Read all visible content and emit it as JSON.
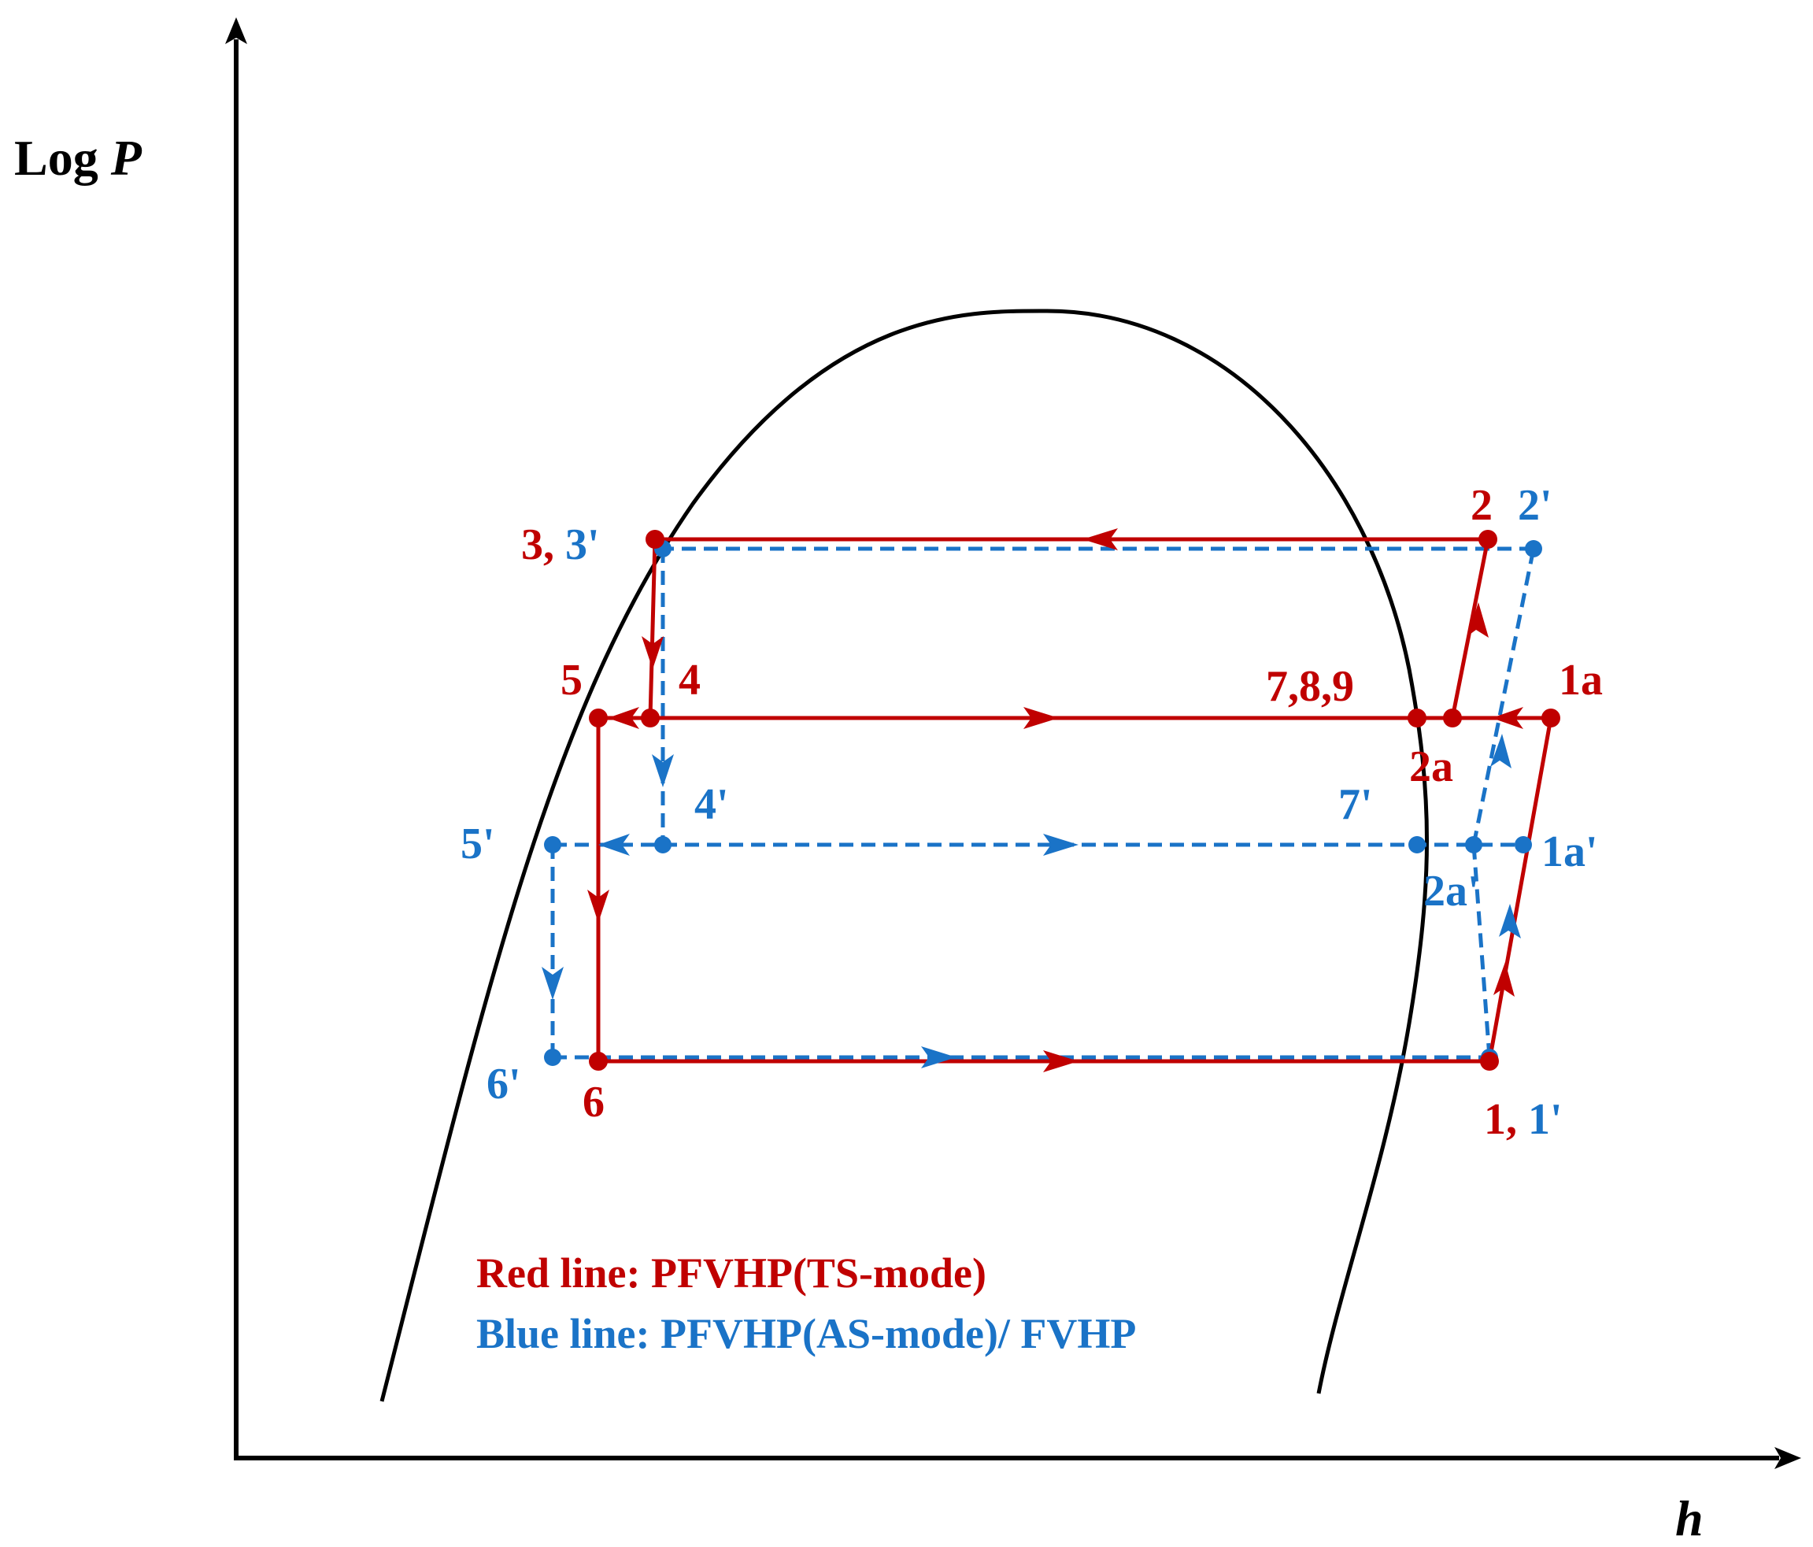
{
  "axes": {
    "y_label_main": "Log ",
    "y_label_var": "P",
    "x_label": "h"
  },
  "colors": {
    "red": "#c00000",
    "blue": "#1a73c7",
    "black": "#000000"
  },
  "points": {
    "red_3_3p_a": "3, ",
    "red_3_3p_b": "3'",
    "p2": "2",
    "p2p": "2'",
    "p5": "5",
    "p4": "4",
    "p789": "7,8,9",
    "p1a": "1a",
    "p2a": "2a",
    "p4p": "4'",
    "p7p": "7'",
    "p5p": "5'",
    "p1ap": "1a'",
    "p2ap": "2a'",
    "p6p": "6'",
    "p6": "6",
    "p1_a": "1, ",
    "p1_b": "1'"
  },
  "legend": {
    "red": "Red line: PFVHP(TS-mode)",
    "blue": "Blue line: PFVHP(AS-mode)/ FVHP"
  }
}
